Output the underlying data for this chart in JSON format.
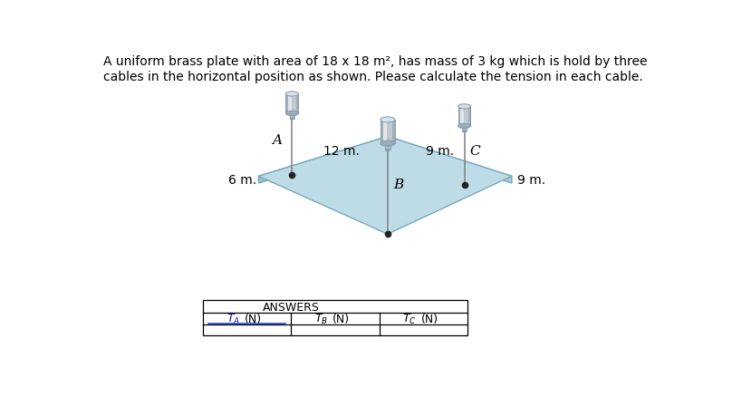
{
  "title_text": "A uniform brass plate with area of 18 x 18 m², has mass of 3 kg which is hold by three\ncables in the horizontal position as shown. Please calculate the tension in each cable.",
  "title_fontsize": 10,
  "bg_color": "#ffffff",
  "plate_top_color": "#bddce8",
  "plate_side_color_left": "#9bbfce",
  "plate_side_color_right": "#a8cad8",
  "plate_edge_color": "#7aaab8",
  "label_A": "A",
  "label_B": "B",
  "label_C": "C",
  "dim_6m": "6 m.",
  "dim_12m": "12 m.",
  "dim_9m_right": "9 m.",
  "dim_9m_bottom": "9 m.",
  "answers_title": "ANSWERS",
  "cable_color": "#888888",
  "dot_color": "#222222",
  "bolt_body_color": "#c8c8c8",
  "bolt_top_color": "#e0e0e0",
  "bolt_highlight": "#ffffff",
  "bolt_shadow": "#999999"
}
